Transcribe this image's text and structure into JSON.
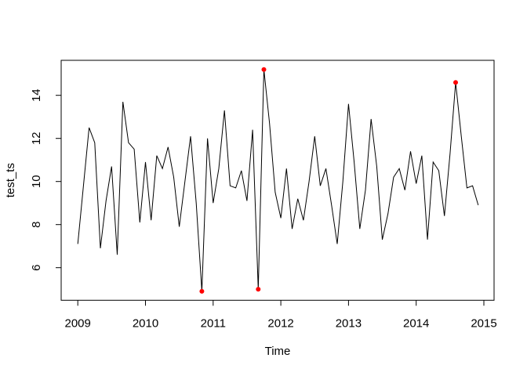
{
  "chart_data": {
    "type": "line",
    "title": "",
    "xlabel": "Time",
    "ylabel": "test_ts",
    "x_ticks": [
      2009,
      2010,
      2011,
      2012,
      2013,
      2014,
      2015
    ],
    "y_ticks": [
      6,
      8,
      10,
      12,
      14
    ],
    "xlim": [
      2008.75,
      2015.15
    ],
    "ylim": [
      4.5,
      15.6
    ],
    "grid": false,
    "legend_position": "none",
    "colors": {
      "line": "#000000",
      "axis": "#000000",
      "outlier": "#ff0000",
      "background": "#ffffff"
    },
    "series": [
      {
        "name": "test_ts",
        "start_year": 2009,
        "start_month": 1,
        "frequency": 12,
        "values": [
          7.1,
          9.8,
          12.5,
          11.8,
          6.9,
          9.1,
          10.7,
          6.6,
          13.7,
          11.8,
          11.5,
          8.1,
          10.9,
          8.2,
          11.2,
          10.6,
          11.6,
          10.2,
          7.9,
          10.0,
          12.1,
          9.0,
          4.9,
          12.0,
          9.0,
          10.6,
          13.3,
          9.8,
          9.7,
          10.5,
          9.1,
          12.4,
          5.0,
          15.2,
          12.7,
          9.5,
          8.3,
          10.6,
          7.8,
          9.2,
          8.2,
          10.0,
          12.1,
          9.8,
          10.6,
          8.9,
          7.1,
          10.0,
          13.6,
          10.9,
          7.8,
          9.6,
          12.9,
          10.7,
          7.3,
          8.5,
          10.2,
          10.6,
          9.6,
          11.4,
          9.9,
          11.2,
          7.3,
          10.9,
          10.5,
          8.4,
          11.3,
          14.6,
          12.1,
          9.7,
          9.8,
          8.9
        ]
      }
    ],
    "outliers": {
      "marker": "filled-circle",
      "color": "#ff0000",
      "points": [
        {
          "index": 22,
          "time": "2010-11",
          "value": 4.9
        },
        {
          "index": 32,
          "time": "2011-09",
          "value": 5.0
        },
        {
          "index": 33,
          "time": "2011-10",
          "value": 15.2
        },
        {
          "index": 67,
          "time": "2014-08",
          "value": 14.6
        }
      ]
    }
  }
}
